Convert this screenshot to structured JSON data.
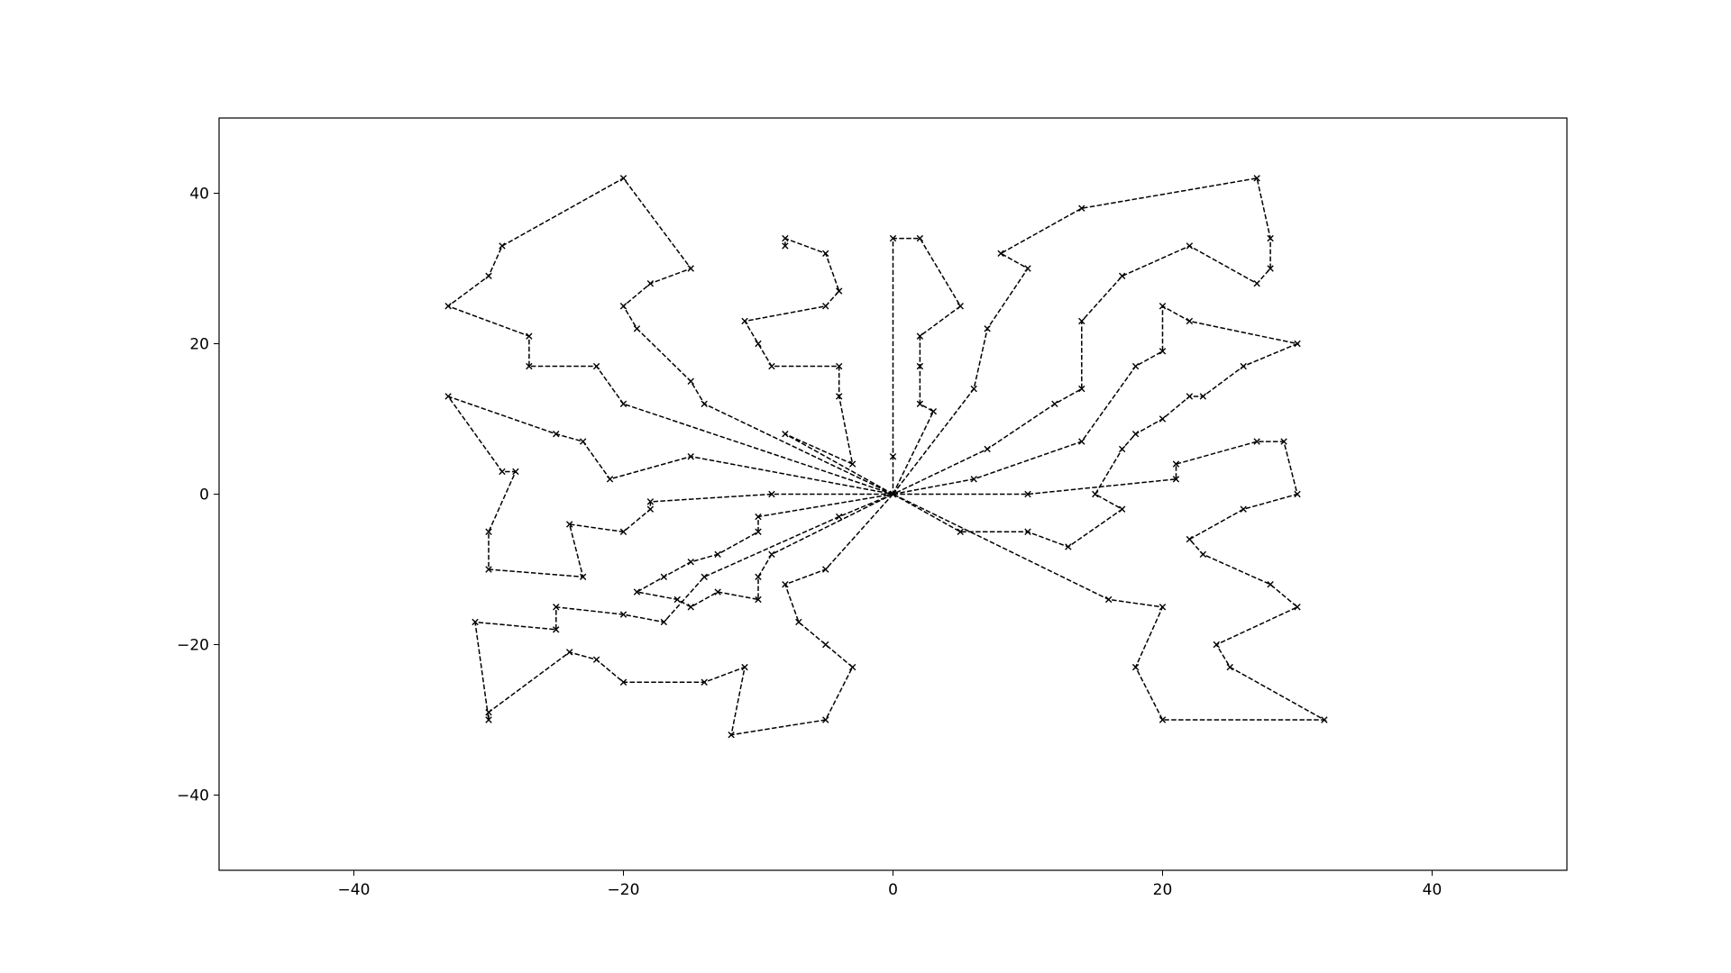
{
  "chart_data": {
    "type": "line",
    "title": "",
    "xlabel": "",
    "ylabel": "",
    "xlim": [
      -50,
      50
    ],
    "ylim": [
      -50,
      50
    ],
    "x_ticks": [
      -40,
      -20,
      0,
      20,
      40
    ],
    "y_ticks": [
      -40,
      -20,
      0,
      20,
      40
    ],
    "x_tick_labels": [
      "−40",
      "−20",
      "0",
      "20",
      "40"
    ],
    "y_tick_labels": [
      "−40",
      "−20",
      "0",
      "20",
      "40"
    ],
    "grid": false,
    "line_style": "dashed",
    "marker": "x",
    "color": "#000000",
    "series": [
      {
        "points": [
          [
            0,
            0
          ],
          [
            -14,
            12
          ],
          [
            -15,
            15
          ],
          [
            -19,
            22
          ],
          [
            -20,
            25
          ],
          [
            -18,
            28
          ],
          [
            -15,
            30
          ],
          [
            -20,
            42
          ],
          [
            -29,
            33
          ],
          [
            -30,
            29
          ],
          [
            -33,
            25
          ],
          [
            -27,
            21
          ],
          [
            -27,
            17
          ],
          [
            -22,
            17
          ],
          [
            -20,
            12
          ],
          [
            0,
            0
          ]
        ]
      },
      {
        "points": [
          [
            0,
            0
          ],
          [
            -8,
            8
          ],
          [
            -3,
            4
          ],
          [
            -4,
            13
          ],
          [
            -4,
            17
          ],
          [
            -9,
            17
          ],
          [
            -10,
            20
          ],
          [
            -11,
            23
          ],
          [
            -5,
            25
          ],
          [
            -4,
            27
          ],
          [
            -5,
            32
          ],
          [
            -8,
            34
          ],
          [
            -8,
            33
          ]
        ]
      },
      {
        "points": [
          [
            0,
            0
          ],
          [
            3,
            11
          ],
          [
            2,
            12
          ],
          [
            2,
            17
          ],
          [
            2,
            21
          ],
          [
            5,
            25
          ],
          [
            2,
            34
          ],
          [
            0,
            34
          ],
          [
            0,
            5
          ],
          [
            0,
            0
          ]
        ]
      },
      {
        "points": [
          [
            0,
            0
          ],
          [
            6,
            14
          ],
          [
            7,
            22
          ],
          [
            10,
            30
          ],
          [
            8,
            32
          ],
          [
            14,
            38
          ],
          [
            27,
            42
          ],
          [
            28,
            34
          ],
          [
            28,
            30
          ],
          [
            27,
            28
          ],
          [
            22,
            33
          ],
          [
            17,
            29
          ],
          [
            14,
            23
          ],
          [
            14,
            14
          ],
          [
            12,
            12
          ],
          [
            7,
            6
          ],
          [
            0,
            0
          ]
        ]
      },
      {
        "points": [
          [
            0,
            0
          ],
          [
            6,
            2
          ],
          [
            14,
            7
          ],
          [
            18,
            17
          ],
          [
            20,
            19
          ],
          [
            20,
            25
          ],
          [
            22,
            23
          ],
          [
            30,
            20
          ],
          [
            26,
            17
          ],
          [
            23,
            13
          ],
          [
            22,
            13
          ],
          [
            20,
            10
          ],
          [
            18,
            8
          ],
          [
            17,
            6
          ],
          [
            15,
            0
          ],
          [
            17,
            -2
          ],
          [
            13,
            -7
          ],
          [
            10,
            -5
          ],
          [
            5,
            -5
          ],
          [
            0,
            0
          ]
        ]
      },
      {
        "points": [
          [
            0,
            0
          ],
          [
            10,
            0
          ],
          [
            21,
            2
          ],
          [
            21,
            4
          ],
          [
            27,
            7
          ],
          [
            29,
            7
          ],
          [
            30,
            0
          ],
          [
            26,
            -2
          ],
          [
            22,
            -6
          ],
          [
            23,
            -8
          ],
          [
            28,
            -12
          ],
          [
            30,
            -15
          ],
          [
            24,
            -20
          ],
          [
            25,
            -23
          ],
          [
            32,
            -30
          ],
          [
            20,
            -30
          ],
          [
            18,
            -23
          ],
          [
            20,
            -15
          ],
          [
            16,
            -14
          ],
          [
            0,
            0
          ]
        ]
      },
      {
        "points": [
          [
            0,
            0
          ],
          [
            -5,
            -10
          ],
          [
            -8,
            -12
          ],
          [
            -7,
            -17
          ],
          [
            -5,
            -20
          ],
          [
            -3,
            -23
          ],
          [
            -5,
            -30
          ],
          [
            -12,
            -32
          ],
          [
            -11,
            -23
          ],
          [
            -14,
            -25
          ],
          [
            -20,
            -25
          ],
          [
            -22,
            -22
          ],
          [
            -24,
            -21
          ],
          [
            -30,
            -29
          ],
          [
            -30,
            -30
          ],
          [
            -31,
            -17
          ],
          [
            -25,
            -18
          ],
          [
            -25,
            -15
          ],
          [
            -20,
            -16
          ],
          [
            -17,
            -17
          ],
          [
            -14,
            -11
          ],
          [
            -4,
            -3
          ],
          [
            0,
            0
          ]
        ]
      },
      {
        "points": [
          [
            0,
            0
          ],
          [
            -9,
            -8
          ],
          [
            -10,
            -11
          ],
          [
            -10,
            -14
          ],
          [
            -13,
            -13
          ],
          [
            -15,
            -15
          ],
          [
            -16,
            -14
          ],
          [
            -19,
            -13
          ],
          [
            -17,
            -11
          ],
          [
            -15,
            -9
          ],
          [
            -13,
            -8
          ],
          [
            -10,
            -5
          ],
          [
            -10,
            -3
          ],
          [
            0,
            0
          ]
        ]
      },
      {
        "points": [
          [
            0,
            0
          ],
          [
            -9,
            0
          ],
          [
            -18,
            -1
          ],
          [
            -18,
            -2
          ],
          [
            -20,
            -5
          ],
          [
            -24,
            -4
          ],
          [
            -23,
            -11
          ],
          [
            -30,
            -10
          ],
          [
            -30,
            -5
          ],
          [
            -28,
            3
          ],
          [
            -29,
            3
          ],
          [
            -33,
            13
          ],
          [
            -25,
            8
          ],
          [
            -23,
            7
          ],
          [
            -21,
            2
          ],
          [
            -15,
            5
          ],
          [
            0,
            0
          ]
        ]
      }
    ]
  }
}
